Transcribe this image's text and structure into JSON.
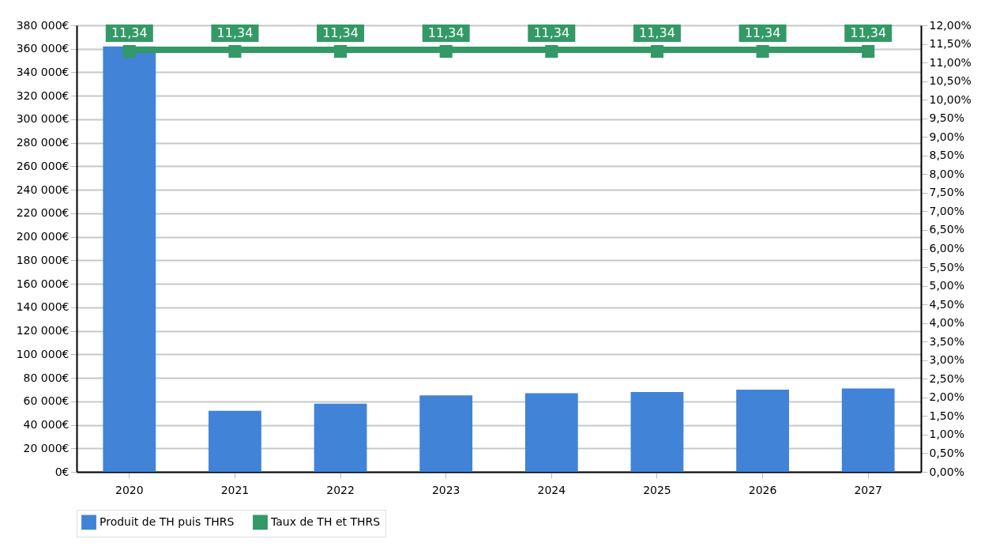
{
  "chart_data": {
    "type": "bar",
    "categories": [
      "2020",
      "2021",
      "2022",
      "2023",
      "2024",
      "2025",
      "2026",
      "2027"
    ],
    "series": [
      {
        "name": "Produit de TH puis THRS",
        "color": "#4183d7",
        "values": [
          362000,
          52000,
          58000,
          65000,
          67000,
          68000,
          70000,
          71000
        ]
      },
      {
        "name": "Taux de TH et THRS",
        "color": "#339966",
        "type": "line",
        "axis": "y2",
        "marker": "square",
        "values": [
          11.34,
          11.34,
          11.34,
          11.34,
          11.34,
          11.34,
          11.34,
          11.34
        ],
        "value_labels": [
          "11,34",
          "11,34",
          "11,34",
          "11,34",
          "11,34",
          "11,34",
          "11,34",
          "11,34"
        ]
      }
    ],
    "ylim": [
      0,
      380000
    ],
    "yticks": [
      {
        "value": 0,
        "label": "0€"
      },
      {
        "value": 20000,
        "label": "20 000€"
      },
      {
        "value": 40000,
        "label": "40 000€"
      },
      {
        "value": 60000,
        "label": "60 000€"
      },
      {
        "value": 80000,
        "label": "80 000€"
      },
      {
        "value": 100000,
        "label": "100 000€"
      },
      {
        "value": 120000,
        "label": "120 000€"
      },
      {
        "value": 140000,
        "label": "140 000€"
      },
      {
        "value": 160000,
        "label": "160 000€"
      },
      {
        "value": 180000,
        "label": "180 000€"
      },
      {
        "value": 200000,
        "label": "200 000€"
      },
      {
        "value": 220000,
        "label": "220 000€"
      },
      {
        "value": 240000,
        "label": "240 000€"
      },
      {
        "value": 260000,
        "label": "260 000€"
      },
      {
        "value": 280000,
        "label": "280 000€"
      },
      {
        "value": 300000,
        "label": "300 000€"
      },
      {
        "value": 320000,
        "label": "320 000€"
      },
      {
        "value": 340000,
        "label": "340 000€"
      },
      {
        "value": 360000,
        "label": "360 000€"
      },
      {
        "value": 380000,
        "label": "380 000€"
      }
    ],
    "y2lim": [
      0,
      12
    ],
    "y2ticks": [
      {
        "value": 0,
        "label": "0,00%"
      },
      {
        "value": 0.5,
        "label": "0,50%"
      },
      {
        "value": 1,
        "label": "1,00%"
      },
      {
        "value": 1.5,
        "label": "1,50%"
      },
      {
        "value": 2,
        "label": "2,00%"
      },
      {
        "value": 2.5,
        "label": "2,50%"
      },
      {
        "value": 3,
        "label": "3,00%"
      },
      {
        "value": 3.5,
        "label": "3,50%"
      },
      {
        "value": 4,
        "label": "4,00%"
      },
      {
        "value": 4.5,
        "label": "4,50%"
      },
      {
        "value": 5,
        "label": "5,00%"
      },
      {
        "value": 5.5,
        "label": "5,50%"
      },
      {
        "value": 6,
        "label": "6,00%"
      },
      {
        "value": 6.5,
        "label": "6,50%"
      },
      {
        "value": 7,
        "label": "7,00%"
      },
      {
        "value": 7.5,
        "label": "7,50%"
      },
      {
        "value": 8,
        "label": "8,00%"
      },
      {
        "value": 8.5,
        "label": "8,50%"
      },
      {
        "value": 9,
        "label": "9,00%"
      },
      {
        "value": 9.5,
        "label": "9,50%"
      },
      {
        "value": 10,
        "label": "10,00%"
      },
      {
        "value": 10.5,
        "label": "10,50%"
      },
      {
        "value": 11,
        "label": "11,00%"
      },
      {
        "value": 11.5,
        "label": "11,50%"
      },
      {
        "value": 12,
        "label": "12,00%"
      }
    ],
    "grid": "y",
    "legend": "bottom"
  }
}
